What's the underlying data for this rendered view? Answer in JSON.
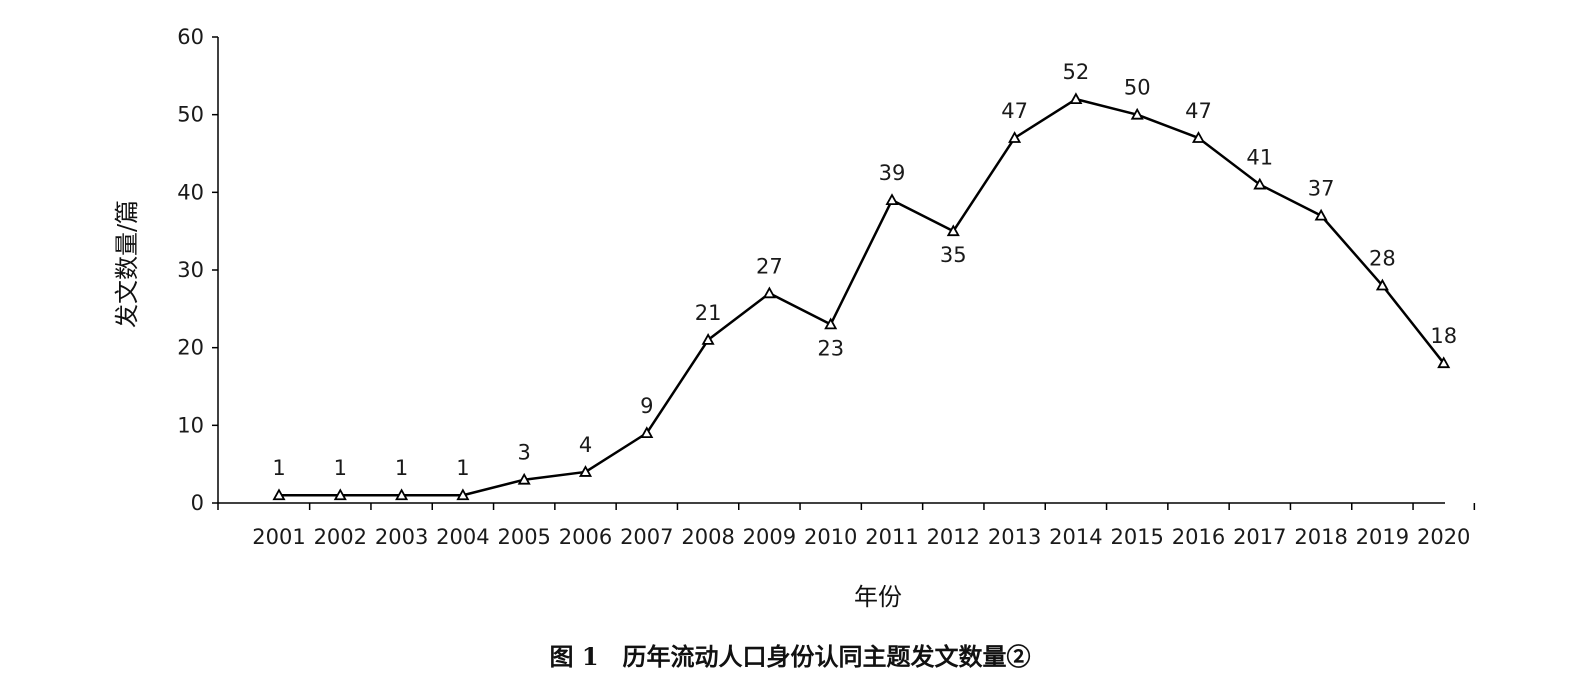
{
  "chart_data": {
    "type": "line",
    "x": [
      "2001",
      "2002",
      "2003",
      "2004",
      "2005",
      "2006",
      "2007",
      "2008",
      "2009",
      "2010",
      "2011",
      "2012",
      "2013",
      "2014",
      "2015",
      "2016",
      "2017",
      "2018",
      "2019",
      "2020"
    ],
    "series": [
      {
        "values": [
          1,
          1,
          1,
          1,
          3,
          4,
          9,
          21,
          27,
          23,
          39,
          35,
          47,
          52,
          50,
          47,
          41,
          37,
          28,
          18
        ]
      }
    ],
    "xlabel": "年份",
    "ylabel": "发文数量/篇",
    "ylim": [
      0,
      60
    ],
    "yticks": [
      0,
      10,
      20,
      30,
      40,
      50,
      60
    ],
    "marker": "triangle",
    "data_labels": true,
    "grid": false,
    "caption": "图 1　历年流动人口身份认同主题发文数量②"
  }
}
